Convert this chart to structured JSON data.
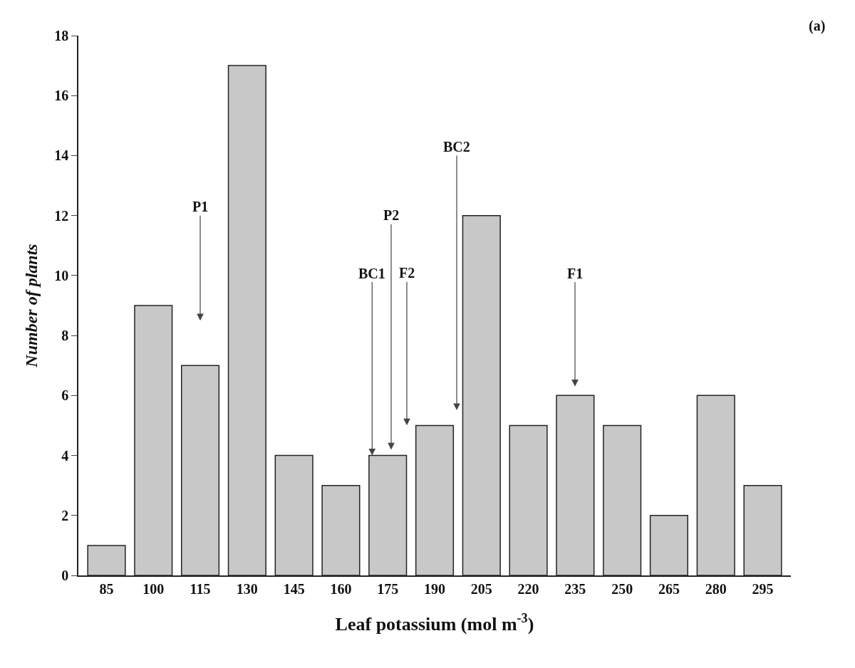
{
  "chart_data": {
    "type": "bar",
    "xlabel": "Leaf potassium (mol m$^{-3}$)",
    "ylabel": "Number of plants",
    "x": [
      85,
      100,
      115,
      130,
      145,
      160,
      175,
      190,
      205,
      220,
      235,
      250,
      265,
      280,
      295
    ],
    "values": [
      1,
      9,
      7,
      17,
      4,
      3,
      4,
      5,
      12,
      5,
      6,
      5,
      2,
      6,
      3
    ],
    "color": "#c8c8c8",
    "xlim": [
      76,
      304
    ],
    "xticks": [
      85,
      100,
      115,
      130,
      145,
      160,
      175,
      190,
      205,
      220,
      235,
      250,
      265,
      280,
      295
    ],
    "ylim": [
      0,
      18
    ],
    "yticks": [
      0,
      2,
      4,
      6,
      8,
      10,
      12,
      14,
      16,
      18
    ],
    "grid": false,
    "legend": false,
    "annotations": [
      "(a)",
      "P1",
      {
        "text": "BC1",
        "x": 170,
        "y": 4
      },
      "P2",
      "F2",
      "BC2",
      "F1"
    ]
  }
}
